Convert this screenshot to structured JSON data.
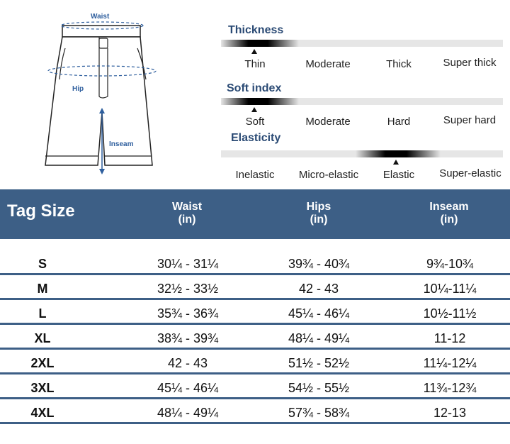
{
  "diagram": {
    "waist_label": "Waist",
    "hip_label": "Hip",
    "inseam_label": "Inseam"
  },
  "scales": [
    {
      "title": "Thickness",
      "options": [
        "Thin",
        "Moderate",
        "Thick",
        "Super thick"
      ],
      "selected": 0
    },
    {
      "title": "Soft index",
      "options": [
        "Soft",
        "Moderate",
        "Hard",
        "Super hard"
      ],
      "selected": 0
    },
    {
      "title": "Elasticity",
      "options": [
        "Inelastic",
        "Micro-elastic",
        "Elastic",
        "Super-elastic"
      ],
      "selected": 2
    }
  ],
  "table": {
    "tag_size_label": "Tag Size",
    "columns": [
      {
        "name": "Waist",
        "unit": "(in)"
      },
      {
        "name": "Hips",
        "unit": "(in)"
      },
      {
        "name": "Inseam",
        "unit": "(in)"
      }
    ],
    "rows": [
      {
        "size": "S",
        "waist": "30¼ - 31¼",
        "hips": "39¾ - 40¾",
        "inseam": "9¾-10¾"
      },
      {
        "size": "M",
        "waist": "32½ - 33½",
        "hips": "42 - 43",
        "inseam": "10¼-11¼"
      },
      {
        "size": "L",
        "waist": "35¾ - 36¾",
        "hips": "45¼ - 46¼",
        "inseam": "10½-11½"
      },
      {
        "size": "XL",
        "waist": "38¾ - 39¾",
        "hips": "48¼ - 49¼",
        "inseam": "11-12"
      },
      {
        "size": "2XL",
        "waist": "42 - 43",
        "hips": "51½ - 52½",
        "inseam": "11¼-12¼"
      },
      {
        "size": "3XL",
        "waist": "45¼ - 46¼",
        "hips": "54½ - 55½",
        "inseam": "11¾-12¾"
      },
      {
        "size": "4XL",
        "waist": "48¼ - 49¼",
        "hips": "57¾ - 58¾",
        "inseam": "12-13"
      }
    ]
  },
  "colors": {
    "header_bg": "#3d5f86",
    "title_text": "#2a4a74",
    "measure_line": "#2f5f9e"
  }
}
